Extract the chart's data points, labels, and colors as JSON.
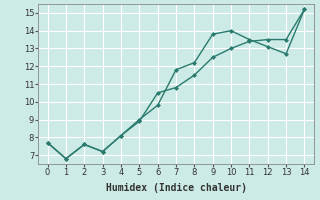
{
  "line1_x": [
    0,
    1,
    2,
    3,
    4,
    5,
    6,
    7,
    8,
    9,
    10,
    11,
    12,
    13,
    14
  ],
  "line1_y": [
    7.7,
    6.8,
    7.6,
    7.2,
    8.1,
    9.0,
    9.8,
    11.8,
    12.2,
    13.8,
    14.0,
    13.5,
    13.1,
    12.7,
    15.2
  ],
  "line2_x": [
    0,
    1,
    2,
    3,
    4,
    5,
    6,
    7,
    8,
    9,
    10,
    11,
    12,
    13,
    14
  ],
  "line2_y": [
    7.7,
    6.8,
    7.6,
    7.2,
    8.1,
    8.9,
    10.5,
    10.8,
    11.5,
    12.5,
    13.0,
    13.4,
    13.5,
    13.5,
    15.2
  ],
  "line_color": "#2a7a6e",
  "bg_color": "#cceae6",
  "grid_color": "#b0d8d4",
  "xlabel": "Humidex (Indice chaleur)",
  "xlabel_fontsize": 7,
  "xlim": [
    -0.5,
    14.5
  ],
  "ylim": [
    6.5,
    15.5
  ],
  "xticks": [
    0,
    1,
    2,
    3,
    4,
    5,
    6,
    7,
    8,
    9,
    10,
    11,
    12,
    13,
    14
  ],
  "yticks": [
    7,
    8,
    9,
    10,
    11,
    12,
    13,
    14,
    15
  ],
  "tick_fontsize": 6,
  "markersize": 2.5,
  "linewidth": 1.0
}
